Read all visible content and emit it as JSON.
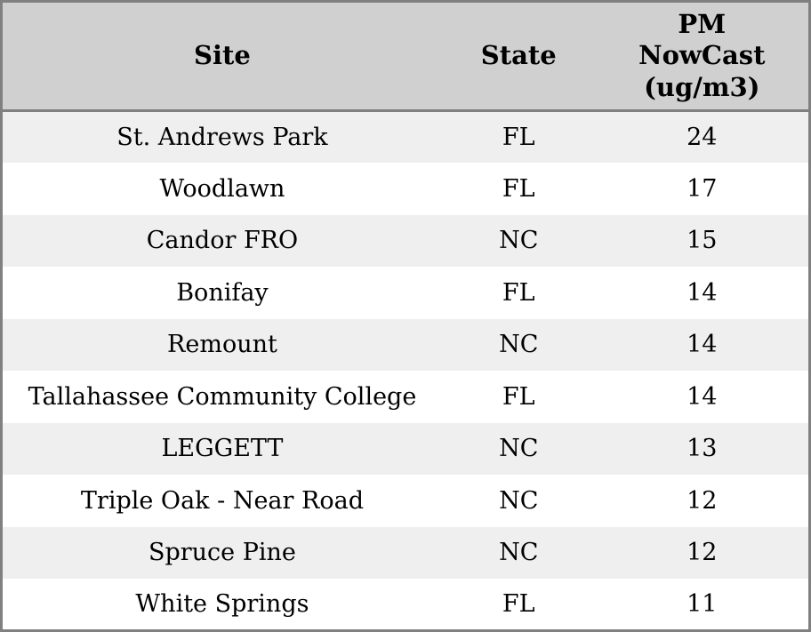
{
  "colors": {
    "header_bg": "#d0d0d0",
    "row_alt_bg": "#efefef",
    "row_bg": "#ffffff",
    "border": "#808080",
    "text": "#000000"
  },
  "chart_data": {
    "type": "table",
    "columns": [
      "Site",
      "State",
      "PM NowCast (ug/m3)"
    ],
    "rows": [
      {
        "site": "St. Andrews Park",
        "state": "FL",
        "pm_nowcast": 24
      },
      {
        "site": "Woodlawn",
        "state": "FL",
        "pm_nowcast": 17
      },
      {
        "site": "Candor FRO",
        "state": "NC",
        "pm_nowcast": 15
      },
      {
        "site": "Bonifay",
        "state": "FL",
        "pm_nowcast": 14
      },
      {
        "site": "Remount",
        "state": "NC",
        "pm_nowcast": 14
      },
      {
        "site": "Tallahassee Community College",
        "state": "FL",
        "pm_nowcast": 14
      },
      {
        "site": "LEGGETT",
        "state": "NC",
        "pm_nowcast": 13
      },
      {
        "site": "Triple Oak - Near Road",
        "state": "NC",
        "pm_nowcast": 12
      },
      {
        "site": "Spruce Pine",
        "state": "NC",
        "pm_nowcast": 12
      },
      {
        "site": "White Springs",
        "state": "FL",
        "pm_nowcast": 11
      }
    ]
  }
}
